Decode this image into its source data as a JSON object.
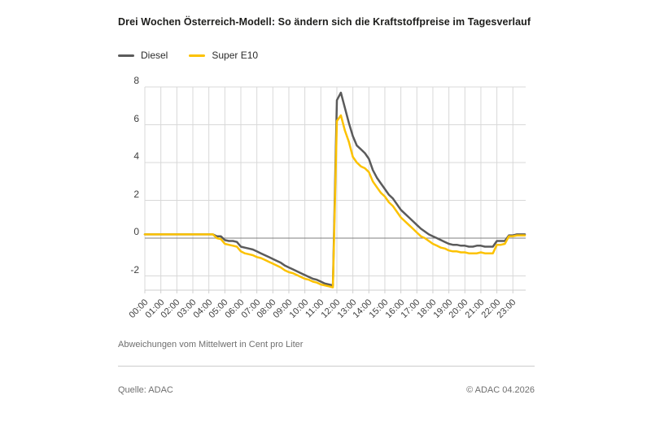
{
  "title": "Drei Wochen Österreich-Modell: So ändern sich die Kraftstoffpreise im Tagesverlauf",
  "caption": "Abweichungen vom Mittelwert in Cent pro Liter",
  "footer": {
    "source": "Quelle: ADAC",
    "copyright": "© ADAC 04.2026"
  },
  "colors": {
    "diesel_line": "#5b5b5b",
    "super_e10_line": "#fcc200",
    "grid": "#d8d8d8",
    "zero_line": "#7f7f7f",
    "axis": "#cfcfcf"
  },
  "chart_data": {
    "type": "line",
    "title": "Drei Wochen Österreich-Modell: So ändern sich die Kraftstoffpreise im Tagesverlauf",
    "ylabel": "Abweichungen vom Mittelwert in Cent pro Liter",
    "xlabel": "",
    "grid": true,
    "legend_position": "top-left",
    "x_tick_labels": [
      "00:00",
      "01:00",
      "02:00",
      "03:00",
      "04:00",
      "05:00",
      "06:00",
      "07:00",
      "08:00",
      "09:00",
      "10:00",
      "11:00",
      "12:00",
      "13:00",
      "14:00",
      "15:00",
      "16:00",
      "17:00",
      "18:00",
      "19:00",
      "20:00",
      "21:00",
      "22:00",
      "23:00"
    ],
    "y_ticks": [
      8,
      6,
      4,
      2,
      0,
      -2
    ],
    "y_range": [
      -2.75,
      8.0
    ],
    "x_range_hours": [
      0,
      23.8
    ],
    "x_start_hour": 0,
    "x_step_minutes": 15,
    "series": [
      {
        "name": "Diesel",
        "color": "#5b5b5b",
        "values": [
          0.2,
          0.2,
          0.2,
          0.2,
          0.2,
          0.2,
          0.2,
          0.2,
          0.2,
          0.2,
          0.2,
          0.2,
          0.2,
          0.2,
          0.2,
          0.2,
          0.2,
          0.2,
          0.1,
          0.1,
          -0.1,
          -0.15,
          -0.15,
          -0.2,
          -0.45,
          -0.5,
          -0.55,
          -0.6,
          -0.7,
          -0.8,
          -0.9,
          -1.0,
          -1.1,
          -1.2,
          -1.3,
          -1.45,
          -1.55,
          -1.65,
          -1.75,
          -1.85,
          -1.95,
          -2.05,
          -2.15,
          -2.2,
          -2.3,
          -2.4,
          -2.45,
          -2.5,
          7.3,
          7.7,
          6.9,
          6.1,
          5.4,
          4.9,
          4.7,
          4.5,
          4.2,
          3.6,
          3.2,
          2.9,
          2.6,
          2.3,
          2.1,
          1.8,
          1.5,
          1.3,
          1.1,
          0.9,
          0.7,
          0.5,
          0.35,
          0.2,
          0.1,
          0.0,
          -0.1,
          -0.2,
          -0.3,
          -0.35,
          -0.35,
          -0.4,
          -0.4,
          -0.45,
          -0.45,
          -0.4,
          -0.4,
          -0.45,
          -0.45,
          -0.45,
          -0.15,
          -0.15,
          -0.15,
          0.15,
          0.15,
          0.2,
          0.2,
          0.2
        ]
      },
      {
        "name": "Super E10",
        "color": "#fcc200",
        "values": [
          0.2,
          0.2,
          0.2,
          0.2,
          0.2,
          0.2,
          0.2,
          0.2,
          0.2,
          0.2,
          0.2,
          0.2,
          0.2,
          0.2,
          0.2,
          0.2,
          0.2,
          0.2,
          0.0,
          -0.05,
          -0.3,
          -0.35,
          -0.4,
          -0.45,
          -0.7,
          -0.8,
          -0.85,
          -0.9,
          -1.0,
          -1.05,
          -1.15,
          -1.25,
          -1.35,
          -1.45,
          -1.55,
          -1.7,
          -1.8,
          -1.85,
          -1.95,
          -2.05,
          -2.15,
          -2.2,
          -2.3,
          -2.35,
          -2.45,
          -2.5,
          -2.55,
          -2.6,
          6.2,
          6.5,
          5.7,
          5.1,
          4.3,
          4.0,
          3.8,
          3.7,
          3.5,
          3.0,
          2.7,
          2.4,
          2.2,
          1.9,
          1.7,
          1.4,
          1.1,
          0.9,
          0.7,
          0.5,
          0.3,
          0.1,
          0.0,
          -0.15,
          -0.3,
          -0.4,
          -0.5,
          -0.55,
          -0.65,
          -0.7,
          -0.7,
          -0.75,
          -0.75,
          -0.8,
          -0.8,
          -0.8,
          -0.75,
          -0.8,
          -0.8,
          -0.8,
          -0.35,
          -0.35,
          -0.3,
          0.1,
          0.1,
          0.15,
          0.15,
          0.15
        ]
      }
    ]
  }
}
